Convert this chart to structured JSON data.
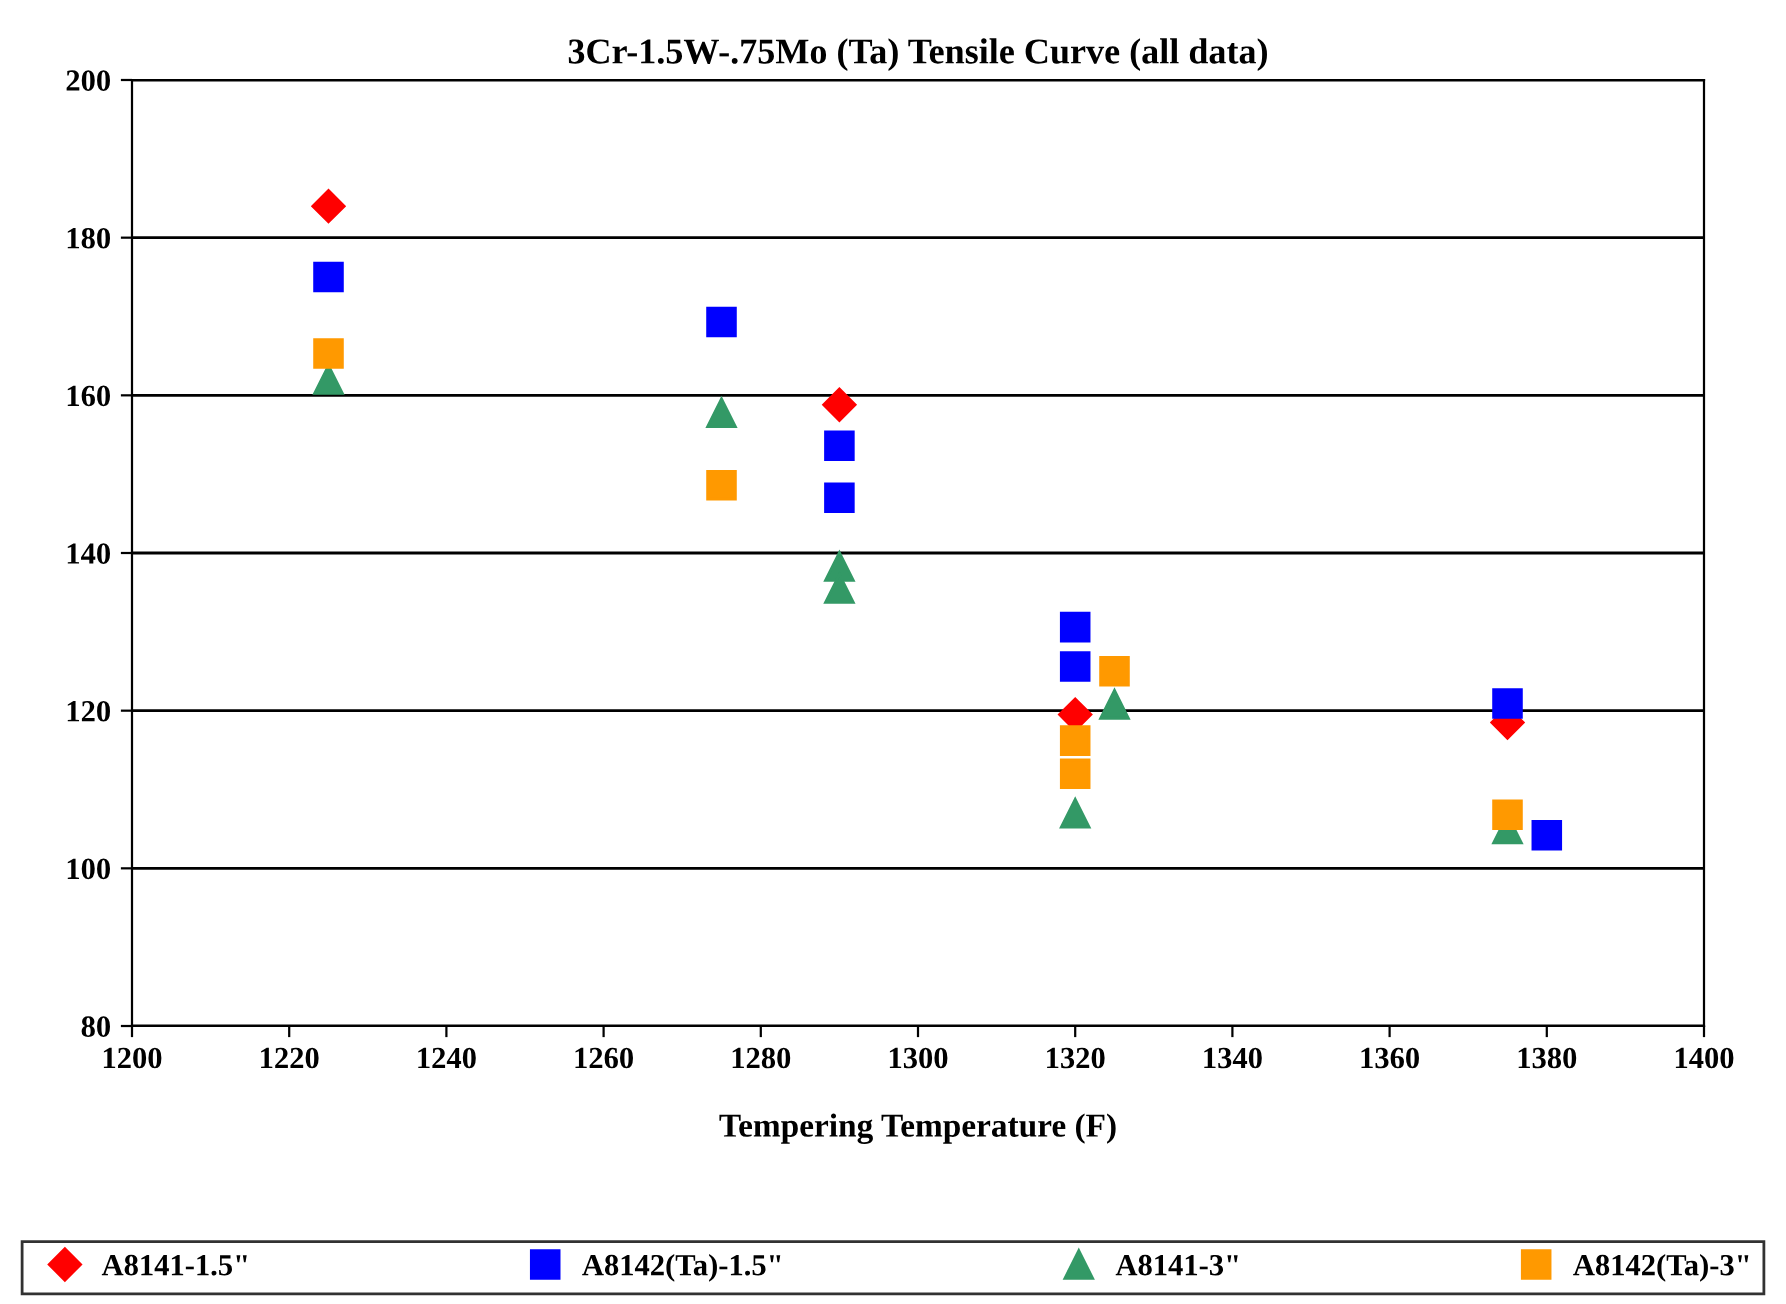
{
  "chart_data": {
    "type": "scatter",
    "title": "3Cr-1.5W-.75Mo (Ta) Tensile Curve (all data)",
    "xlabel": "Tempering Temperature (F)",
    "xlim": [
      1200,
      1400
    ],
    "xticks": [
      1200,
      1220,
      1240,
      1260,
      1280,
      1300,
      1320,
      1340,
      1360,
      1380,
      1400
    ],
    "ylim": [
      80,
      200
    ],
    "yticks": [
      80,
      100,
      120,
      140,
      160,
      180,
      200
    ],
    "grid": "y",
    "legend": "bottom",
    "series": [
      {
        "name": "A8141-1.5\"",
        "color": "#ff0000",
        "marker": "diamond",
        "x": [
          1225,
          1290,
          1320,
          1375
        ],
        "values": [
          184,
          158.8,
          119.5,
          118.5
        ]
      },
      {
        "name": "A8142(Ta)-1.5\"",
        "color": "#0000ff",
        "marker": "square",
        "x": [
          1225,
          1275,
          1290,
          1290,
          1320,
          1320,
          1375,
          1380
        ],
        "values": [
          175,
          169.3,
          153.6,
          147,
          130.6,
          125.6,
          120.9,
          104.2
        ]
      },
      {
        "name": "A8141-3\"",
        "color": "#339966",
        "marker": "triangle",
        "x": [
          1225,
          1275,
          1290,
          1290,
          1320,
          1325,
          1375
        ],
        "values": [
          162,
          157.8,
          138.3,
          135.5,
          107,
          120.8,
          105
        ]
      },
      {
        "name": "A8142(Ta)-3\"",
        "color": "#ff9900",
        "marker": "square",
        "x": [
          1225,
          1275,
          1320,
          1320,
          1325,
          1375
        ],
        "values": [
          165.3,
          148.6,
          116.2,
          112,
          125,
          106.8
        ]
      }
    ]
  }
}
